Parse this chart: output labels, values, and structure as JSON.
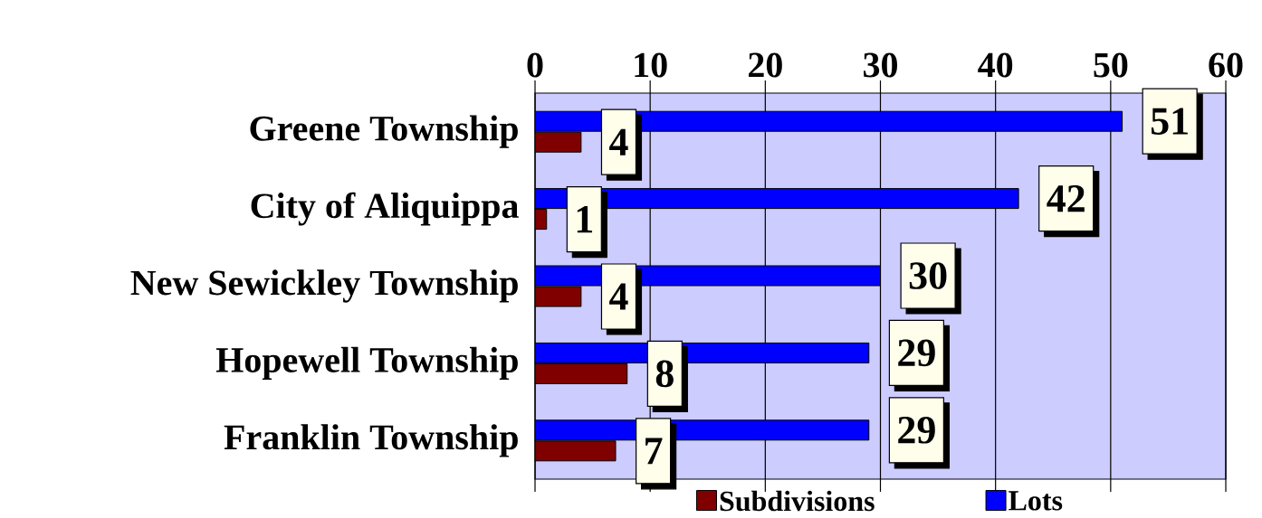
{
  "chart_data": {
    "type": "bar",
    "orientation": "horizontal",
    "categories": [
      "Greene Township",
      "City of Aliquippa",
      "New Sewickley Township",
      "Hopewell Township",
      "Franklin Township"
    ],
    "series": [
      {
        "name": "Subdivisions",
        "color": "#800000",
        "values": [
          4,
          1,
          4,
          8,
          7
        ]
      },
      {
        "name": "Lots",
        "color": "#0000ff",
        "values": [
          51,
          42,
          30,
          29,
          29
        ]
      }
    ],
    "xlim": [
      0,
      60
    ],
    "xticks": [
      0,
      10,
      20,
      30,
      40,
      50,
      60
    ],
    "grid": "x",
    "legend": "bottom",
    "data_labels": true
  }
}
